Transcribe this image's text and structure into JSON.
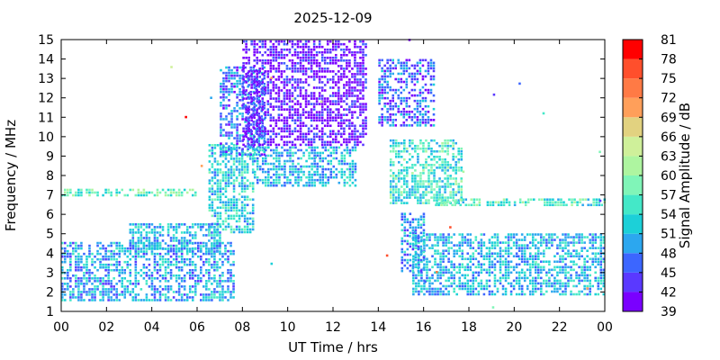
{
  "chart_data": {
    "type": "heatmap",
    "title": "2025-12-09",
    "xlabel": "UT Time / hrs",
    "ylabel": "Frequency / MHz",
    "colorbar_label": "Signal Amplitude / dB",
    "x_range": [
      0,
      24
    ],
    "y_range": [
      1,
      15
    ],
    "x_ticks": [
      "00",
      "02",
      "04",
      "06",
      "08",
      "10",
      "12",
      "14",
      "16",
      "18",
      "20",
      "22",
      "00"
    ],
    "y_ticks": [
      "1",
      "2",
      "3",
      "4",
      "5",
      "6",
      "7",
      "8",
      "9",
      "10",
      "11",
      "12",
      "13",
      "14",
      "15"
    ],
    "color_scale": {
      "min": 39,
      "max": 81,
      "ticks": [
        "39",
        "42",
        "45",
        "48",
        "51",
        "54",
        "57",
        "60",
        "63",
        "66",
        "69",
        "72",
        "75",
        "78",
        "81"
      ],
      "bands": [
        {
          "from": 39,
          "to": 42,
          "color": "#7a00ff"
        },
        {
          "from": 42,
          "to": 45,
          "color": "#5a39ff"
        },
        {
          "from": 45,
          "to": 48,
          "color": "#3c66ff"
        },
        {
          "from": 48,
          "to": 51,
          "color": "#2ca7ef"
        },
        {
          "from": 51,
          "to": 54,
          "color": "#1cd0d8"
        },
        {
          "from": 54,
          "to": 57,
          "color": "#44e8c8"
        },
        {
          "from": 57,
          "to": 60,
          "color": "#80f5b8"
        },
        {
          "from": 60,
          "to": 63,
          "color": "#aef5a0"
        },
        {
          "from": 63,
          "to": 66,
          "color": "#cff09a"
        },
        {
          "from": 66,
          "to": 69,
          "color": "#e2d280"
        },
        {
          "from": 69,
          "to": 72,
          "color": "#ff9f5a"
        },
        {
          "from": 72,
          "to": 75,
          "color": "#ff7a45"
        },
        {
          "from": 75,
          "to": 78,
          "color": "#ff4f2c"
        },
        {
          "from": 78,
          "to": 81,
          "color": "#ff0000"
        }
      ]
    },
    "regions": [
      {
        "x_range": [
          0.0,
          7.6
        ],
        "y_range": [
          1.5,
          4.5
        ],
        "base_db": 50
      },
      {
        "x_range": [
          3.0,
          7.0
        ],
        "y_range": [
          4.0,
          5.5
        ],
        "base_db": 51
      },
      {
        "x_range": [
          0.0,
          6.0
        ],
        "y_range": [
          6.9,
          7.2
        ],
        "base_db": 57
      },
      {
        "x_range": [
          6.5,
          8.5
        ],
        "y_range": [
          5.0,
          9.6
        ],
        "base_db": 53
      },
      {
        "x_range": [
          7.0,
          9.0
        ],
        "y_range": [
          9.0,
          13.5
        ],
        "base_db": 47
      },
      {
        "x_range": [
          8.0,
          13.5
        ],
        "y_range": [
          9.5,
          14.9
        ],
        "base_db": 41
      },
      {
        "x_range": [
          8.5,
          13.0
        ],
        "y_range": [
          7.4,
          9.5
        ],
        "base_db": 51
      },
      {
        "x_range": [
          14.0,
          16.5
        ],
        "y_range": [
          10.5,
          14.0
        ],
        "base_db": 46
      },
      {
        "x_range": [
          14.5,
          17.7
        ],
        "y_range": [
          6.5,
          9.8
        ],
        "base_db": 55
      },
      {
        "x_range": [
          16.5,
          24.0
        ],
        "y_range": [
          6.4,
          6.7
        ],
        "base_db": 56
      },
      {
        "x_range": [
          15.5,
          24.0
        ],
        "y_range": [
          1.8,
          5.0
        ],
        "base_db": 51
      },
      {
        "x_range": [
          15.0,
          16.0
        ],
        "y_range": [
          3.0,
          6.0
        ],
        "base_db": 49
      }
    ],
    "cell_size": {
      "dx_hr": 0.12,
      "dy_mhz": 0.14
    },
    "sparse_fraction": 0.08
  }
}
